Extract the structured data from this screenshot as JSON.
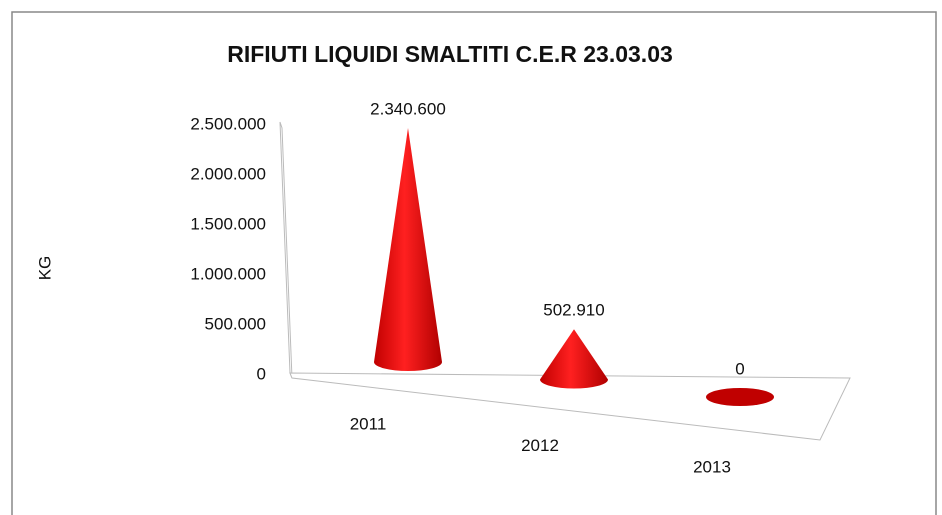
{
  "chart_data": {
    "type": "cone3d",
    "title": "RIFIUTI LIQUIDI SMALTITI  C.E.R  23.03.03",
    "ylabel": "KG",
    "categories": [
      "2011",
      "2012",
      "2013"
    ],
    "values": [
      2340600,
      502910,
      0
    ],
    "value_labels": [
      "2.340.600",
      "502.910",
      "0"
    ],
    "color": "#ff0000",
    "ylim": [
      0,
      2500000
    ],
    "yticks": [
      0,
      {
        "value": 500000,
        "label": "500.000"
      },
      {
        "value": 1000000,
        "label": "1.000.000"
      },
      {
        "value": 1500000,
        "label": "1.500.000"
      },
      {
        "value": 2000000,
        "label": "2.000.000"
      },
      {
        "value": 2500000,
        "label": "2.500.000"
      }
    ]
  }
}
